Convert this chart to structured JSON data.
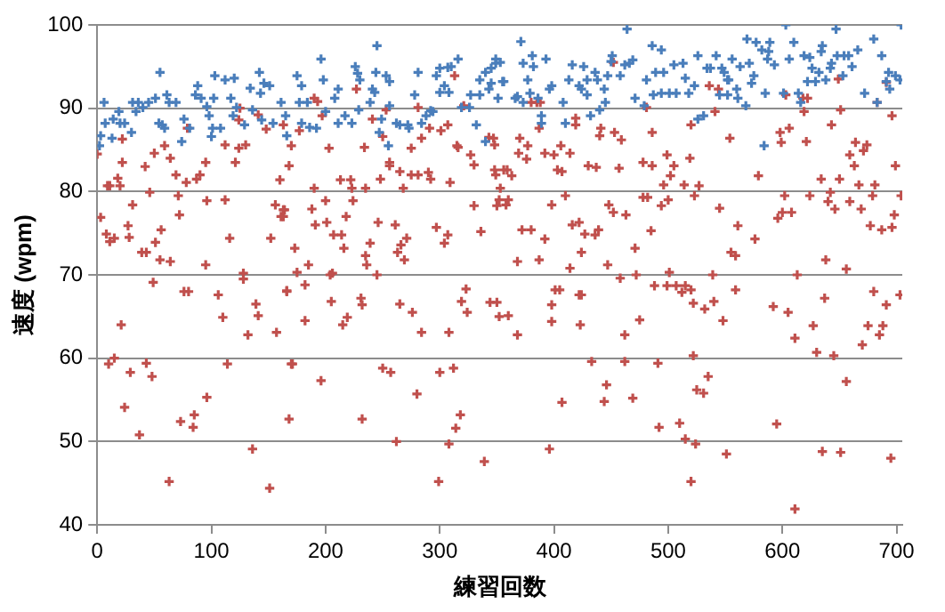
{
  "chart_data": {
    "type": "scatter",
    "xlabel": "練習回数",
    "ylabel": "速度 (wpm)",
    "xlim": [
      0,
      705
    ],
    "xticks": [
      0,
      100,
      200,
      300,
      400,
      500,
      600,
      700
    ],
    "ylim": [
      40,
      100
    ],
    "yticks": [
      40,
      50,
      60,
      70,
      80,
      90,
      100
    ],
    "grid": "y",
    "marker": "cross",
    "series": [
      {
        "color": "#4a7ebb",
        "x": [
          2,
          3,
          7,
          6,
          13,
          14,
          19,
          20,
          24,
          30,
          31,
          34,
          36,
          40,
          45,
          51,
          54,
          55,
          57,
          59,
          61,
          63,
          69,
          74,
          76,
          81,
          86,
          88,
          91,
          96,
          98,
          100,
          101,
          102,
          103,
          108,
          112,
          117,
          119,
          120,
          122,
          129,
          134,
          136,
          142,
          143,
          144,
          146,
          151,
          154,
          161,
          165,
          166,
          175,
          177,
          179,
          179,
          184,
          186,
          192,
          196,
          198,
          200,
          208,
          211,
          211,
          217,
          223,
          226,
          228,
          230,
          229,
          239,
          241,
          243,
          245,
          244,
          247,
          249,
          253,
          255,
          256,
          256,
          262,
          265,
          272,
          273,
          278,
          281,
          284,
          288,
          292,
          294,
          297,
          300,
          300,
          304,
          307,
          308,
          310,
          316,
          319,
          326,
          327,
          332,
          335,
          335,
          340,
          340,
          343,
          345,
          345,
          349,
          349,
          351,
          353,
          356,
          355,
          366,
          368,
          371,
          373,
          373,
          377,
          379,
          381,
          382,
          386,
          389,
          389,
          393,
          396,
          398,
          408,
          410,
          413,
          416,
          422,
          424,
          426,
          429,
          429,
          432,
          436,
          438,
          440,
          444,
          445,
          447,
          450,
          451,
          458,
          462,
          464,
          466,
          469,
          471,
          479,
          481,
          486,
          487,
          489,
          494,
          494,
          496,
          501,
          505,
          507,
          513,
          515,
          518,
          523,
          526,
          526,
          531,
          534,
          537,
          542,
          545,
          549,
          552,
          547,
          552,
          553,
          556,
          560,
          561,
          563,
          568,
          569,
          571,
          573,
          575,
          577,
          582,
          585,
          587,
          588,
          589,
          593,
          584,
          601,
          603,
          606,
          610,
          614,
          616,
          619,
          622,
          624,
          626,
          629,
          632,
          634,
          635,
          638,
          642,
          643,
          647,
          648,
          653,
          654,
          658,
          661,
          666,
          672,
          680,
          683,
          687,
          691,
          693,
          694,
          699,
          703,
          704
        ],
        "values": [
          85.5,
          86.7,
          88.2,
          90.7,
          86.4,
          88.7,
          89.6,
          88.2,
          88.2,
          87.1,
          90.7,
          89.6,
          90.7,
          90.1,
          90.7,
          91.2,
          88.2,
          94.3,
          88,
          87.6,
          91.6,
          90.7,
          90.7,
          86,
          88.7,
          87.6,
          91.6,
          92.7,
          91.2,
          90.2,
          89.1,
          86.6,
          87.6,
          91.2,
          93.9,
          87.6,
          93.4,
          91.2,
          89.1,
          93.6,
          90.1,
          88,
          92.4,
          89.8,
          94.3,
          91.8,
          88.6,
          93,
          92.7,
          88.2,
          90.7,
          89.1,
          86.7,
          93.9,
          90.7,
          92.7,
          88.2,
          90.7,
          87.7,
          87.6,
          95.9,
          93.4,
          89.6,
          91.2,
          88.2,
          92.3,
          89.1,
          88.2,
          95,
          94.2,
          93.4,
          89.8,
          90.7,
          92.3,
          91.9,
          97.5,
          94.3,
          87.1,
          88.7,
          93.9,
          85.5,
          93.2,
          90.3,
          88.2,
          88,
          88,
          87.6,
          91.6,
          94.3,
          88.2,
          89.1,
          89.7,
          89.6,
          93.9,
          94.8,
          91.9,
          92.7,
          94.9,
          91.9,
          95,
          95.9,
          90.1,
          90.1,
          91.6,
          88,
          91.6,
          93.4,
          86,
          94.3,
          92.3,
          94.8,
          93,
          95.9,
          95.4,
          91.2,
          95.5,
          93.2,
          93.2,
          91.2,
          91.4,
          98,
          95.4,
          90.7,
          93.4,
          91.8,
          96.3,
          95,
          91.2,
          88.2,
          89.1,
          95.9,
          92.3,
          92.7,
          90.7,
          88.2,
          93.4,
          95.2,
          92.7,
          92.3,
          95,
          93.4,
          91.6,
          89.1,
          94.3,
          93.4,
          89.8,
          92.3,
          90.7,
          93.9,
          95.6,
          96.3,
          93.9,
          95.2,
          99.5,
          95.4,
          95.8,
          91.2,
          90.3,
          93.4,
          97.5,
          91.6,
          94.3,
          97,
          91.8,
          94.3,
          91.8,
          95.2,
          91.8,
          95.4,
          93.6,
          91.8,
          92.7,
          96.3,
          88.7,
          89.1,
          94.8,
          94.8,
          96.3,
          91.6,
          94.3,
          93.4,
          94.8,
          91.6,
          93.4,
          95.9,
          92.3,
          91.2,
          95,
          90.3,
          98.3,
          95.4,
          93,
          93.9,
          97.9,
          97,
          91.8,
          95.9,
          96.8,
          97.9,
          95.2,
          85.5,
          91.8,
          100,
          95.9,
          97.9,
          91.8,
          90.7,
          96.3,
          93.2,
          96.1,
          94.8,
          93.2,
          94.3,
          96.8,
          97.5,
          93.4,
          94.8,
          95.4,
          99.5,
          96.3,
          93.9,
          96.3,
          96.3,
          95,
          97,
          91.8,
          98.3,
          90.7,
          96.3,
          93.2,
          94.3,
          92.3,
          93.9,
          93.4,
          100
        ]
      },
      {
        "color": "#c0504d",
        "x": [
          0,
          3,
          9,
          11,
          8,
          11,
          15,
          20,
          21,
          10,
          15,
          18,
          22,
          22,
          24,
          27,
          28,
          31,
          29,
          37,
          39,
          43,
          42,
          43,
          48,
          49,
          50,
          51,
          46,
          55,
          56,
          59,
          63,
          64,
          64,
          69,
          71,
          72,
          73,
          76,
          80,
          78,
          79,
          84,
          85,
          87,
          90,
          95,
          96,
          95,
          96,
          106,
          110,
          112,
          112,
          114,
          116,
          121,
          124,
          124,
          125,
          128,
          128,
          130,
          132,
          136,
          139,
          141,
          141,
          148,
          151,
          152,
          156,
          157,
          160,
          163,
          164,
          166,
          168,
          170,
          168,
          163,
          163,
          161,
          173,
          175,
          166,
          171,
          170,
          177,
          182,
          182,
          185,
          188,
          190,
          191,
          190,
          193,
          196,
          197,
          200,
          201,
          203,
          204,
          205,
          206,
          207,
          213,
          214,
          215,
          216,
          218,
          219,
          222,
          223,
          224,
          227,
          232,
          231,
          232,
          234,
          235,
          235,
          236,
          239,
          241,
          245,
          246,
          248,
          250,
          250,
          253,
          256,
          256,
          257,
          261,
          262,
          263,
          265,
          265,
          266,
          268,
          269,
          271,
          275,
          275,
          276,
          280,
          281,
          281,
          284,
          284,
          290,
          291,
          292,
          297,
          299,
          300,
          301,
          304,
          307,
          307,
          308,
          308,
          309,
          312,
          313,
          314,
          315,
          316,
          318,
          319,
          321,
          323,
          324,
          327,
          330,
          330,
          336,
          339,
          343,
          344,
          347,
          348,
          348,
          349,
          350,
          352,
          352,
          353,
          356,
          359,
          363,
          358,
          360,
          350,
          360,
          368,
          368,
          372,
          369,
          370,
          376,
          377,
          380,
          380,
          385,
          387,
          388,
          387,
          392,
          392,
          398,
          398,
          398,
          396,
          400,
          401,
          403,
          405,
          406,
          407,
          410,
          407,
          414,
          414,
          416,
          419,
          419,
          422,
          422,
          424,
          424,
          423,
          427,
          430,
          433,
          436,
          439,
          437,
          440,
          441,
          444,
          446,
          447,
          448,
          452,
          452,
          453,
          457,
          458,
          459,
          462,
          462,
          463,
          469,
          471,
          472,
          475,
          478,
          478,
          481,
          482,
          485,
          486,
          486,
          488,
          491,
          492,
          494,
          496,
          499,
          499,
          500,
          501,
          502,
          505,
          507,
          510,
          512,
          514,
          515,
          515,
          519,
          520,
          520,
          522,
          522,
          523,
          524,
          520,
          525,
          527,
          531,
          532,
          535,
          536,
          539,
          540,
          541,
          544,
          545,
          548,
          551,
          555,
          554,
          561,
          559,
          559,
          576,
          579,
          592,
          595,
          596,
          598,
          599,
          600,
          602,
          603,
          605,
          606,
          608,
          611,
          611,
          613,
          618,
          619,
          621,
          622,
          624,
          627,
          630,
          634,
          635,
          637,
          638,
          640,
          642,
          643,
          645,
          646,
          649,
          650,
          651,
          651,
          656,
          656,
          659,
          659,
          663,
          664,
          667,
          669,
          670,
          671,
          674,
          675,
          677,
          679,
          680,
          681,
          683,
          685,
          687,
          688,
          691,
          691,
          695,
          696,
          696,
          698,
          699,
          703,
          704
        ],
        "values": [
          84.5,
          76.9,
          80.7,
          80.7,
          74.9,
          74,
          74.4,
          80.7,
          64,
          59.3,
          60,
          81.6,
          83.5,
          86.3,
          54.1,
          75.9,
          74.5,
          78.4,
          58.3,
          50.8,
          72.7,
          72.7,
          83,
          59.4,
          57.8,
          69.1,
          84.6,
          73.9,
          79.9,
          71.8,
          75.4,
          85.5,
          45.2,
          71.6,
          84,
          82,
          79.5,
          77.2,
          52.4,
          68,
          68,
          81.1,
          87.6,
          51.7,
          53.2,
          81.5,
          82,
          71.2,
          55.3,
          83.5,
          78.9,
          67.6,
          64.9,
          85.6,
          79,
          59.3,
          74.4,
          83.5,
          88.6,
          85.2,
          90,
          70.2,
          69.5,
          85.6,
          62.8,
          49.1,
          66.5,
          65.1,
          89.2,
          87.5,
          44.4,
          74.4,
          78.4,
          63.1,
          81.4,
          77,
          77.8,
          68.1,
          52.7,
          59.3,
          83.1,
          88,
          77.8,
          77,
          73.2,
          70.3,
          68,
          59.3,
          85.5,
          87.3,
          68.8,
          64.5,
          71.2,
          77.9,
          80.4,
          76,
          91.2,
          90.8,
          57.3,
          89.1,
          78.9,
          76.3,
          85.2,
          70,
          66.8,
          70.2,
          74.8,
          81.4,
          74.8,
          64,
          73.2,
          77,
          64.9,
          81.4,
          80.4,
          78.9,
          92.3,
          52.7,
          67.2,
          66.4,
          85.3,
          80.4,
          72.3,
          71.2,
          73.8,
          88.7,
          70,
          76.3,
          81.5,
          58.8,
          86.6,
          89.8,
          83.1,
          83.5,
          58.3,
          76,
          50,
          72.7,
          66.5,
          82.4,
          73.6,
          80.4,
          71.8,
          74.4,
          82,
          85.2,
          65.5,
          55.7,
          82,
          90.1,
          63.1,
          86.4,
          82.3,
          87.6,
          81.5,
          75.7,
          45.2,
          58.3,
          87.3,
          73.8,
          88,
          74.8,
          63.1,
          49.7,
          81.1,
          58.8,
          93.9,
          51.6,
          85.5,
          85.3,
          53.2,
          66.8,
          90.3,
          68.3,
          65.5,
          84.4,
          83.2,
          78.3,
          75.2,
          47.6,
          86.5,
          66.7,
          86.4,
          85.6,
          82.6,
          82,
          78.3,
          65,
          79,
          80.4,
          82.6,
          82.6,
          81.9,
          78.4,
          79,
          66.7,
          65.1,
          62.8,
          71.6,
          75.4,
          84.6,
          86.4,
          83.9,
          85.5,
          75.4,
          90.7,
          90.7,
          71.8,
          90.7,
          87.6,
          84.6,
          74.3,
          66.4,
          64.4,
          78.4,
          49.1,
          84.4,
          68.2,
          82.6,
          68.2,
          85.5,
          54.7,
          79.5,
          82.4,
          84.6,
          70.8,
          76,
          88,
          88.8,
          76.3,
          67.6,
          67.6,
          72.7,
          64,
          74.9,
          83.1,
          59.6,
          74.8,
          75.4,
          82.9,
          86.7,
          87.6,
          54.8,
          56.8,
          71.2,
          78.4,
          77.5,
          95.5,
          87.1,
          82.8,
          69.6,
          86.2,
          59.6,
          62.8,
          77.2,
          55.2,
          73.2,
          70,
          64.6,
          79.3,
          83.5,
          90.1,
          79.3,
          75.3,
          83.1,
          87.1,
          68.7,
          59.4,
          51.7,
          78.3,
          80.8,
          68.7,
          84.4,
          79,
          70.3,
          81.9,
          83.1,
          68.7,
          52.2,
          67.9,
          80.8,
          68.7,
          50.3,
          84,
          68.2,
          88,
          66.6,
          60.3,
          79.5,
          49.7,
          45.2,
          56.2,
          80.7,
          55.8,
          65.9,
          57.8,
          92.7,
          70,
          66.8,
          89.6,
          92.3,
          78,
          64.5,
          48.5,
          72.7,
          86.4,
          75.9,
          68.2,
          72.3,
          74.3,
          81.9,
          66.2,
          52.1,
          76.8,
          87.1,
          85.9,
          77.5,
          79.5,
          91.6,
          65.5,
          87.6,
          77.5,
          41.9,
          62.4,
          70,
          91.2,
          89.6,
          86,
          91.2,
          79.5,
          63.9,
          60.7,
          81.5,
          48.8,
          67.2,
          71.8,
          78.8,
          79.9,
          88,
          60.3,
          77.9,
          93.5,
          81.5,
          89.8,
          48.7,
          70.7,
          57.2,
          84.4,
          78.8,
          83.1,
          85.9,
          80.8,
          77.9,
          61.6,
          84.9,
          85.6,
          63.9,
          75.9,
          79.5,
          68,
          80.8,
          90.7,
          62.8,
          75.4,
          63.9,
          66.4,
          93.1,
          48,
          75.7,
          89.1,
          77.2,
          83.1,
          67.6,
          79.5
        ]
      }
    ]
  }
}
